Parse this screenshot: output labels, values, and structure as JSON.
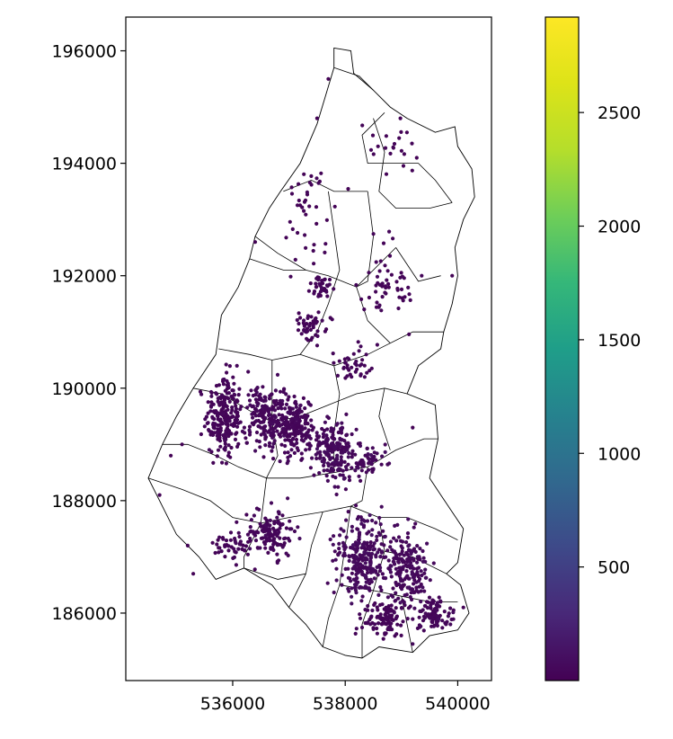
{
  "chart_data": {
    "type": "scatter",
    "title": "",
    "xlabel": "",
    "ylabel": "",
    "xlim": [
      534100,
      540600
    ],
    "ylim": [
      184800,
      196600
    ],
    "x_ticks": [
      536000,
      538000,
      540000
    ],
    "x_tick_labels": [
      "536000",
      "538000",
      "540000"
    ],
    "y_ticks": [
      186000,
      188000,
      190000,
      192000,
      194000,
      196000
    ],
    "y_tick_labels": [
      "186000",
      "188000",
      "190000",
      "192000",
      "194000",
      "196000"
    ],
    "colorbar": {
      "colormap": "viridis",
      "range": [
        0,
        2920
      ],
      "ticks": [
        500,
        1000,
        1500,
        2000,
        2500
      ],
      "tick_labels": [
        "500",
        "1000",
        "1500",
        "2000",
        "2500"
      ]
    },
    "boundary_outline": [
      [
        537800,
        196050
      ],
      [
        538100,
        196000
      ],
      [
        538150,
        195600
      ],
      [
        538500,
        195300
      ],
      [
        538800,
        195000
      ],
      [
        539100,
        194800
      ],
      [
        539600,
        194550
      ],
      [
        539950,
        194650
      ],
      [
        540000,
        194300
      ],
      [
        540250,
        193900
      ],
      [
        540300,
        193400
      ],
      [
        540100,
        193000
      ],
      [
        539950,
        192500
      ],
      [
        540000,
        192000
      ],
      [
        539900,
        191500
      ],
      [
        539750,
        191000
      ],
      [
        539700,
        190700
      ],
      [
        539300,
        190400
      ],
      [
        539100,
        189900
      ],
      [
        539600,
        189700
      ],
      [
        539650,
        189100
      ],
      [
        539500,
        188400
      ],
      [
        539700,
        188100
      ],
      [
        540100,
        187500
      ],
      [
        540000,
        186900
      ],
      [
        539800,
        186700
      ],
      [
        540050,
        186500
      ],
      [
        540200,
        186000
      ],
      [
        540000,
        185700
      ],
      [
        539500,
        185600
      ],
      [
        539200,
        185300
      ],
      [
        538600,
        185400
      ],
      [
        538300,
        185200
      ],
      [
        538000,
        185250
      ],
      [
        537600,
        185400
      ],
      [
        537300,
        185800
      ],
      [
        537000,
        186100
      ],
      [
        536700,
        186500
      ],
      [
        536200,
        186800
      ],
      [
        535700,
        186600
      ],
      [
        535400,
        187000
      ],
      [
        535000,
        187400
      ],
      [
        534700,
        188000
      ],
      [
        534500,
        188400
      ],
      [
        534750,
        189000
      ],
      [
        535000,
        189500
      ],
      [
        535300,
        190000
      ],
      [
        535700,
        190600
      ],
      [
        535800,
        191300
      ],
      [
        536100,
        191800
      ],
      [
        536300,
        192300
      ],
      [
        536400,
        192700
      ],
      [
        536650,
        193200
      ],
      [
        536850,
        193500
      ],
      [
        537200,
        194000
      ],
      [
        537500,
        194700
      ],
      [
        537650,
        195200
      ],
      [
        537800,
        195700
      ],
      [
        537800,
        196050
      ]
    ],
    "internal_boundaries": [
      [
        [
          537800,
          195700
        ],
        [
          538250,
          195550
        ],
        [
          538500,
          195300
        ]
      ],
      [
        [
          538700,
          194900
        ],
        [
          538300,
          194500
        ],
        [
          538400,
          194000
        ],
        [
          539300,
          194000
        ],
        [
          539600,
          193700
        ],
        [
          539900,
          193300
        ]
      ],
      [
        [
          536900,
          193500
        ],
        [
          537400,
          193700
        ],
        [
          537800,
          193500
        ],
        [
          538400,
          193500
        ]
      ],
      [
        [
          538500,
          194800
        ],
        [
          538700,
          194200
        ],
        [
          538600,
          193500
        ],
        [
          538900,
          193200
        ],
        [
          539500,
          193200
        ],
        [
          539900,
          193300
        ]
      ],
      [
        [
          537700,
          193500
        ],
        [
          537800,
          192800
        ],
        [
          537900,
          192100
        ],
        [
          537700,
          191500
        ],
        [
          537500,
          191000
        ],
        [
          537200,
          190600
        ]
      ],
      [
        [
          536300,
          192300
        ],
        [
          536900,
          192100
        ],
        [
          537300,
          192100
        ],
        [
          537700,
          192000
        ],
        [
          538200,
          191800
        ],
        [
          538700,
          192300
        ],
        [
          538900,
          192500
        ]
      ],
      [
        [
          538400,
          193500
        ],
        [
          538500,
          192700
        ],
        [
          538400,
          191900
        ],
        [
          538200,
          191800
        ]
      ],
      [
        [
          538900,
          192500
        ],
        [
          539300,
          191900
        ],
        [
          539700,
          192000
        ]
      ],
      [
        [
          538200,
          191800
        ],
        [
          538400,
          191200
        ],
        [
          538800,
          190800
        ],
        [
          539200,
          191000
        ],
        [
          539750,
          191000
        ]
      ],
      [
        [
          536400,
          192700
        ],
        [
          536800,
          192400
        ],
        [
          537300,
          192100
        ]
      ],
      [
        [
          535750,
          190700
        ],
        [
          536300,
          190600
        ],
        [
          536700,
          190500
        ],
        [
          537200,
          190600
        ],
        [
          537800,
          190400
        ],
        [
          538400,
          190600
        ],
        [
          538800,
          190800
        ]
      ],
      [
        [
          535300,
          190000
        ],
        [
          535800,
          189900
        ],
        [
          536300,
          189600
        ],
        [
          536700,
          189400
        ],
        [
          537200,
          189500
        ],
        [
          537700,
          189700
        ],
        [
          538200,
          189900
        ],
        [
          538700,
          190000
        ],
        [
          539100,
          189900
        ]
      ],
      [
        [
          536700,
          190500
        ],
        [
          536700,
          189400
        ],
        [
          536800,
          188800
        ],
        [
          536600,
          188400
        ]
      ],
      [
        [
          534750,
          189000
        ],
        [
          535200,
          189000
        ],
        [
          535700,
          188800
        ],
        [
          536100,
          188600
        ],
        [
          536600,
          188400
        ],
        [
          537200,
          188400
        ],
        [
          537800,
          188500
        ],
        [
          538400,
          188600
        ],
        [
          538900,
          188900
        ],
        [
          539400,
          189100
        ],
        [
          539650,
          189100
        ]
      ],
      [
        [
          537800,
          190400
        ],
        [
          537900,
          189900
        ],
        [
          537800,
          189200
        ],
        [
          537800,
          188500
        ]
      ],
      [
        [
          538700,
          190000
        ],
        [
          538600,
          189500
        ],
        [
          538800,
          188900
        ]
      ],
      [
        [
          534500,
          188400
        ],
        [
          535100,
          188200
        ],
        [
          535600,
          188000
        ],
        [
          536000,
          187700
        ],
        [
          536500,
          187600
        ],
        [
          537000,
          187700
        ],
        [
          537600,
          187800
        ],
        [
          538100,
          187900
        ],
        [
          538600,
          187700
        ],
        [
          539100,
          187700
        ],
        [
          539600,
          187500
        ],
        [
          540000,
          187300
        ]
      ],
      [
        [
          536600,
          188400
        ],
        [
          536500,
          187600
        ],
        [
          536200,
          187000
        ],
        [
          536200,
          186800
        ]
      ],
      [
        [
          537600,
          187800
        ],
        [
          537400,
          187200
        ],
        [
          537300,
          186700
        ],
        [
          537000,
          186100
        ]
      ],
      [
        [
          538400,
          188600
        ],
        [
          538300,
          188000
        ],
        [
          538100,
          187900
        ]
      ],
      [
        [
          538100,
          187900
        ],
        [
          538000,
          187200
        ],
        [
          537900,
          186500
        ],
        [
          537700,
          185900
        ],
        [
          537600,
          185400
        ]
      ],
      [
        [
          538600,
          187700
        ],
        [
          538700,
          187100
        ],
        [
          538500,
          186400
        ],
        [
          538300,
          185800
        ],
        [
          538300,
          185200
        ]
      ],
      [
        [
          537900,
          186500
        ],
        [
          538500,
          186400
        ],
        [
          539000,
          186300
        ],
        [
          539500,
          186200
        ],
        [
          540000,
          186200
        ]
      ],
      [
        [
          538700,
          187100
        ],
        [
          539200,
          187000
        ],
        [
          539800,
          186700
        ]
      ],
      [
        [
          539000,
          186300
        ],
        [
          539100,
          185800
        ],
        [
          539200,
          185300
        ]
      ],
      [
        [
          537300,
          186700
        ],
        [
          536800,
          186600
        ],
        [
          536200,
          186800
        ]
      ]
    ],
    "clusters": [
      {
        "cx": 535850,
        "cy": 189500,
        "sx": 300,
        "sy": 700,
        "n": 230,
        "v": 20
      },
      {
        "cx": 536550,
        "cy": 189500,
        "sx": 330,
        "sy": 480,
        "n": 170,
        "v": 30
      },
      {
        "cx": 537100,
        "cy": 189300,
        "sx": 330,
        "sy": 520,
        "n": 210,
        "v": 25
      },
      {
        "cx": 537800,
        "cy": 188900,
        "sx": 350,
        "sy": 520,
        "n": 170,
        "v": 35
      },
      {
        "cx": 538300,
        "cy": 188700,
        "sx": 380,
        "sy": 350,
        "n": 70,
        "v": 30
      },
      {
        "cx": 538300,
        "cy": 187000,
        "sx": 420,
        "sy": 650,
        "n": 260,
        "v": 40
      },
      {
        "cx": 539100,
        "cy": 186800,
        "sx": 350,
        "sy": 550,
        "n": 190,
        "v": 35
      },
      {
        "cx": 539600,
        "cy": 186000,
        "sx": 300,
        "sy": 300,
        "n": 90,
        "v": 25
      },
      {
        "cx": 538700,
        "cy": 185900,
        "sx": 350,
        "sy": 280,
        "n": 100,
        "v": 20
      },
      {
        "cx": 536700,
        "cy": 187400,
        "sx": 380,
        "sy": 400,
        "n": 130,
        "v": 25
      },
      {
        "cx": 536000,
        "cy": 187200,
        "sx": 300,
        "sy": 250,
        "n": 50,
        "v": 20
      },
      {
        "cx": 537400,
        "cy": 191100,
        "sx": 300,
        "sy": 300,
        "n": 50,
        "v": 20
      },
      {
        "cx": 537600,
        "cy": 191800,
        "sx": 200,
        "sy": 150,
        "n": 35,
        "v": 20
      },
      {
        "cx": 538700,
        "cy": 191800,
        "sx": 500,
        "sy": 700,
        "n": 55,
        "v": 20
      },
      {
        "cx": 538200,
        "cy": 190400,
        "sx": 350,
        "sy": 300,
        "n": 40,
        "v": 20
      },
      {
        "cx": 537300,
        "cy": 193300,
        "sx": 600,
        "sy": 900,
        "n": 40,
        "v": 15
      },
      {
        "cx": 538800,
        "cy": 194300,
        "sx": 450,
        "sy": 500,
        "n": 22,
        "v": 15
      }
    ],
    "isolated_points": [
      {
        "x": 535300,
        "y": 186700,
        "v": 20
      },
      {
        "x": 535200,
        "y": 187200,
        "v": 20
      },
      {
        "x": 534700,
        "y": 188100,
        "v": 20
      },
      {
        "x": 535100,
        "y": 189000,
        "v": 20
      },
      {
        "x": 534900,
        "y": 188800,
        "v": 20
      },
      {
        "x": 536400,
        "y": 192600,
        "v": 20
      },
      {
        "x": 537700,
        "y": 195500,
        "v": 20
      },
      {
        "x": 537500,
        "y": 194800,
        "v": 20
      },
      {
        "x": 539900,
        "y": 192000,
        "v": 20
      },
      {
        "x": 540100,
        "y": 186100,
        "v": 20
      },
      {
        "x": 539200,
        "y": 185450,
        "v": 60
      },
      {
        "x": 539200,
        "y": 189300,
        "v": 20
      }
    ]
  }
}
